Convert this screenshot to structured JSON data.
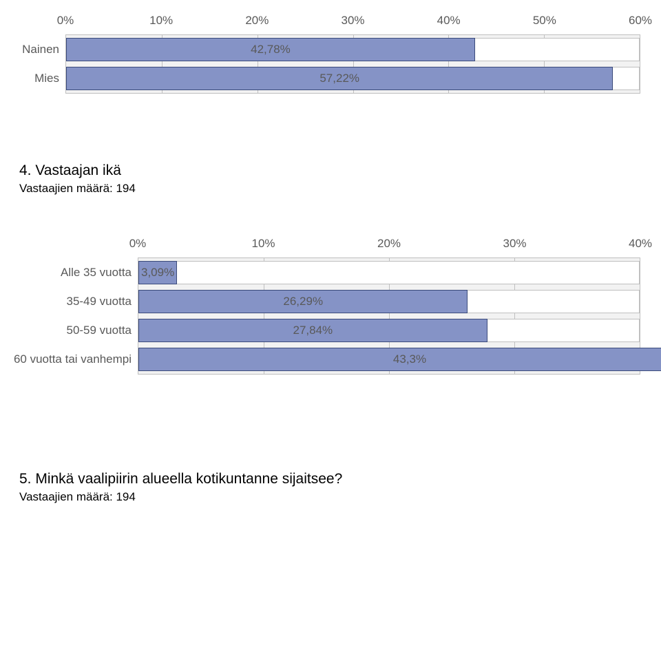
{
  "chart1": {
    "type": "bar-horizontal",
    "xmax": 60,
    "tick_step": 10,
    "tick_labels": [
      "0%",
      "10%",
      "20%",
      "30%",
      "40%",
      "50%",
      "60%"
    ],
    "bar_color": "#8593c6",
    "bar_border": "#3a4a7a",
    "track_color": "#ffffff",
    "background_color": "#f2f2f2",
    "grid_color": "#bfbfbf",
    "text_color": "#595959",
    "label_fontsize": 17,
    "categories": [
      {
        "label": "Nainen",
        "value": 42.78,
        "value_label": "42,78%"
      },
      {
        "label": "Mies",
        "value": 57.22,
        "value_label": "57,22%"
      }
    ]
  },
  "section4": {
    "heading": "4. Vastaajan ikä",
    "sub": "Vastaajien määrä: 194"
  },
  "chart2": {
    "type": "bar-horizontal",
    "xmax": 40,
    "tick_step": 10,
    "tick_labels": [
      "0%",
      "10%",
      "20%",
      "30%",
      "40%"
    ],
    "bar_color": "#8593c6",
    "bar_border": "#3a4a7a",
    "track_color": "#ffffff",
    "background_color": "#f2f2f2",
    "grid_color": "#bfbfbf",
    "text_color": "#595959",
    "label_fontsize": 17,
    "categories": [
      {
        "label": "Alle 35 vuotta",
        "value": 3.09,
        "value_label": "3,09%"
      },
      {
        "label": "35-49 vuotta",
        "value": 26.29,
        "value_label": "26,29%"
      },
      {
        "label": "50-59 vuotta",
        "value": 27.84,
        "value_label": "27,84%"
      },
      {
        "label": "60 vuotta tai vanhempi",
        "value": 43.3,
        "value_label": "43,3%"
      }
    ]
  },
  "section5": {
    "heading": "5. Minkä vaalipiirin alueella kotikuntanne sijaitsee?",
    "sub": "Vastaajien määrä: 194"
  }
}
